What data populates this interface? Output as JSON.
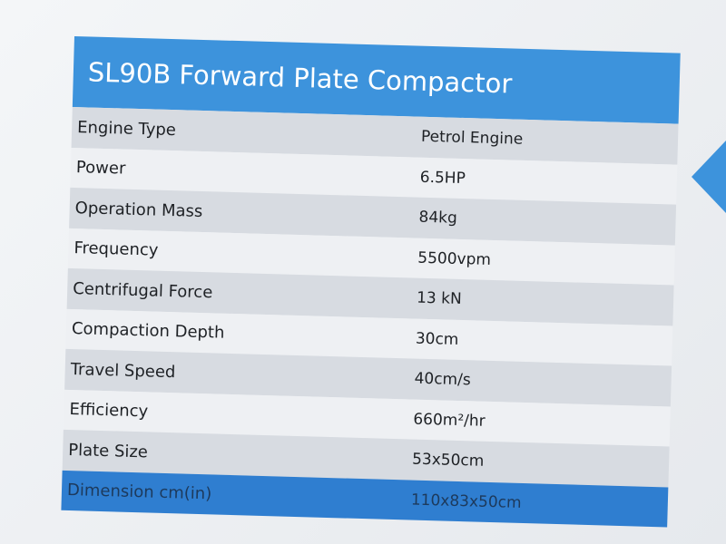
{
  "header": {
    "title": "SL90B Forward Plate Compactor"
  },
  "table": {
    "rows": [
      [
        "Engine Type",
        "Petrol Engine"
      ],
      [
        "Power",
        "6.5HP"
      ],
      [
        "Operation Mass",
        "84kg"
      ],
      [
        "Frequency",
        "5500vpm"
      ],
      [
        "Centrifugal Force",
        "13 kN"
      ],
      [
        "Compaction Depth",
        "30cm"
      ],
      [
        "Travel Speed",
        "40cm/s"
      ],
      [
        "Efficiency",
        "660m²/hr"
      ],
      [
        "Plate Size",
        "53x50cm"
      ],
      [
        "Dimension cm(in)",
        "110x83x50cm"
      ]
    ]
  }
}
